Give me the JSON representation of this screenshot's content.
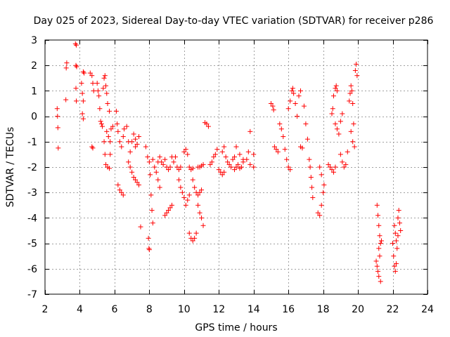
{
  "chart_data": {
    "type": "scatter",
    "title": "Day 025 of 2023, Sidereal Day-to-day VTEC variation (SDTVAR) for receiver p286",
    "xlabel": "GPS time / hours",
    "ylabel": "SDTVAR / TECUs",
    "xlim": [
      2,
      24
    ],
    "ylim": [
      -7,
      3
    ],
    "xticks": [
      2,
      4,
      6,
      8,
      10,
      12,
      14,
      16,
      18,
      20,
      22,
      24
    ],
    "yticks": [
      3,
      2,
      1,
      0,
      -1,
      -2,
      -3,
      -4,
      -5,
      -6,
      -7
    ],
    "grid": true,
    "marker": "plus",
    "color": "#ff0000",
    "series": [
      {
        "name": "SDTVAR",
        "points": [
          [
            2.7,
            0.3
          ],
          [
            2.72,
            0.0
          ],
          [
            2.74,
            -0.45
          ],
          [
            2.76,
            -1.25
          ],
          [
            3.2,
            0.65
          ],
          [
            3.22,
            1.9
          ],
          [
            3.25,
            2.1
          ],
          [
            3.75,
            2.85
          ],
          [
            3.8,
            2.8
          ],
          [
            3.78,
            2.0
          ],
          [
            3.82,
            1.95
          ],
          [
            3.78,
            1.1
          ],
          [
            3.8,
            0.6
          ],
          [
            4.2,
            1.75
          ],
          [
            4.25,
            1.7
          ],
          [
            4.1,
            1.3
          ],
          [
            4.15,
            0.9
          ],
          [
            4.2,
            0.6
          ],
          [
            4.15,
            0.1
          ],
          [
            4.2,
            -0.1
          ],
          [
            4.6,
            1.7
          ],
          [
            4.7,
            1.6
          ],
          [
            4.75,
            1.3
          ],
          [
            4.8,
            1.0
          ],
          [
            4.7,
            -1.2
          ],
          [
            4.75,
            -1.25
          ],
          [
            5.0,
            1.3
          ],
          [
            5.05,
            1.0
          ],
          [
            5.1,
            0.8
          ],
          [
            5.15,
            0.3
          ],
          [
            5.2,
            -0.2
          ],
          [
            5.25,
            -0.3
          ],
          [
            5.3,
            -0.4
          ],
          [
            5.35,
            1.1
          ],
          [
            5.4,
            1.5
          ],
          [
            5.45,
            1.6
          ],
          [
            5.5,
            1.2
          ],
          [
            5.55,
            0.9
          ],
          [
            5.6,
            0.5
          ],
          [
            5.7,
            0.2
          ],
          [
            5.4,
            -1.0
          ],
          [
            5.45,
            -1.5
          ],
          [
            5.5,
            -1.9
          ],
          [
            5.6,
            -2.0
          ],
          [
            5.7,
            -2.05
          ],
          [
            5.75,
            -1.5
          ],
          [
            5.55,
            -0.6
          ],
          [
            5.65,
            -0.8
          ],
          [
            5.75,
            -1.0
          ],
          [
            5.8,
            -0.5
          ],
          [
            5.9,
            -0.4
          ],
          [
            6.1,
            0.2
          ],
          [
            6.15,
            -0.3
          ],
          [
            6.2,
            -0.6
          ],
          [
            6.3,
            -1.0
          ],
          [
            6.4,
            -1.2
          ],
          [
            6.5,
            -0.8
          ],
          [
            6.55,
            -0.5
          ],
          [
            6.2,
            -2.7
          ],
          [
            6.3,
            -2.9
          ],
          [
            6.4,
            -3.0
          ],
          [
            6.5,
            -3.1
          ],
          [
            6.7,
            -0.4
          ],
          [
            6.8,
            -1.0
          ],
          [
            6.9,
            -1.4
          ],
          [
            7.0,
            -1.0
          ],
          [
            7.1,
            -0.7
          ],
          [
            7.2,
            -1.2
          ],
          [
            6.8,
            -1.8
          ],
          [
            6.9,
            -2.0
          ],
          [
            7.0,
            -2.2
          ],
          [
            7.1,
            -2.4
          ],
          [
            7.2,
            -2.5
          ],
          [
            7.3,
            -2.6
          ],
          [
            7.4,
            -2.7
          ],
          [
            7.2,
            -0.9
          ],
          [
            7.3,
            -1.1
          ],
          [
            7.4,
            -0.8
          ],
          [
            7.5,
            -4.35
          ],
          [
            7.8,
            -1.2
          ],
          [
            7.9,
            -1.6
          ],
          [
            8.0,
            -1.8
          ],
          [
            8.05,
            -2.3
          ],
          [
            8.1,
            -3.1
          ],
          [
            8.15,
            -3.7
          ],
          [
            8.2,
            -4.2
          ],
          [
            7.95,
            -4.8
          ],
          [
            7.98,
            -5.2
          ],
          [
            8.0,
            -5.25
          ],
          [
            8.2,
            -1.7
          ],
          [
            8.3,
            -2.0
          ],
          [
            8.4,
            -2.2
          ],
          [
            8.5,
            -2.5
          ],
          [
            8.6,
            -2.8
          ],
          [
            8.5,
            -1.8
          ],
          [
            8.6,
            -1.6
          ],
          [
            8.7,
            -1.8
          ],
          [
            8.8,
            -1.9
          ],
          [
            8.9,
            -1.7
          ],
          [
            9.0,
            -2.0
          ],
          [
            9.1,
            -2.1
          ],
          [
            9.2,
            -2.0
          ],
          [
            8.9,
            -3.9
          ],
          [
            9.0,
            -3.8
          ],
          [
            9.1,
            -3.7
          ],
          [
            9.2,
            -3.6
          ],
          [
            9.3,
            -3.5
          ],
          [
            9.3,
            -1.6
          ],
          [
            9.4,
            -1.8
          ],
          [
            9.5,
            -1.6
          ],
          [
            9.6,
            -2.0
          ],
          [
            9.7,
            -2.1
          ],
          [
            9.8,
            -2.0
          ],
          [
            9.7,
            -2.5
          ],
          [
            9.8,
            -2.8
          ],
          [
            9.9,
            -3.0
          ],
          [
            10.0,
            -3.2
          ],
          [
            10.1,
            -3.5
          ],
          [
            10.2,
            -3.3
          ],
          [
            10.3,
            -3.1
          ],
          [
            10.0,
            -1.4
          ],
          [
            10.1,
            -1.3
          ],
          [
            10.2,
            -1.5
          ],
          [
            10.3,
            -2.0
          ],
          [
            10.4,
            -2.1
          ],
          [
            10.5,
            -2.05
          ],
          [
            10.3,
            -4.6
          ],
          [
            10.4,
            -4.8
          ],
          [
            10.5,
            -4.9
          ],
          [
            10.6,
            -4.8
          ],
          [
            10.7,
            -4.6
          ],
          [
            10.5,
            -2.5
          ],
          [
            10.6,
            -2.8
          ],
          [
            10.7,
            -3.0
          ],
          [
            10.8,
            -3.1
          ],
          [
            10.9,
            -3.0
          ],
          [
            11.0,
            -2.9
          ],
          [
            10.8,
            -3.5
          ],
          [
            10.9,
            -3.8
          ],
          [
            11.0,
            -4.0
          ],
          [
            11.1,
            -4.3
          ],
          [
            10.8,
            -2.0
          ],
          [
            10.9,
            -2.0
          ],
          [
            11.0,
            -1.95
          ],
          [
            11.1,
            -1.9
          ],
          [
            11.2,
            -0.25
          ],
          [
            11.3,
            -0.3
          ],
          [
            11.4,
            -0.4
          ],
          [
            11.5,
            -1.9
          ],
          [
            11.6,
            -1.8
          ],
          [
            11.7,
            -1.6
          ],
          [
            11.8,
            -1.5
          ],
          [
            11.9,
            -1.3
          ],
          [
            12.0,
            -2.1
          ],
          [
            12.1,
            -2.2
          ],
          [
            12.2,
            -2.3
          ],
          [
            12.3,
            -2.2
          ],
          [
            12.2,
            -1.4
          ],
          [
            12.3,
            -1.2
          ],
          [
            12.4,
            -1.6
          ],
          [
            12.5,
            -1.8
          ],
          [
            12.6,
            -1.9
          ],
          [
            12.7,
            -2.0
          ],
          [
            12.8,
            -1.7
          ],
          [
            12.9,
            -1.6
          ],
          [
            12.9,
            -2.1
          ],
          [
            13.0,
            -2.0
          ],
          [
            13.1,
            -1.9
          ],
          [
            13.2,
            -2.05
          ],
          [
            13.3,
            -2.0
          ],
          [
            13.4,
            -1.7
          ],
          [
            13.0,
            -1.2
          ],
          [
            13.2,
            -1.5
          ],
          [
            13.4,
            -1.8
          ],
          [
            13.6,
            -1.7
          ],
          [
            13.7,
            -1.4
          ],
          [
            13.8,
            -0.6
          ],
          [
            13.8,
            -1.9
          ],
          [
            14.0,
            -2.0
          ],
          [
            14.0,
            -1.5
          ],
          [
            15.0,
            0.5
          ],
          [
            15.1,
            0.4
          ],
          [
            15.15,
            0.25
          ],
          [
            15.2,
            -1.2
          ],
          [
            15.3,
            -1.3
          ],
          [
            15.4,
            -1.4
          ],
          [
            15.5,
            -0.3
          ],
          [
            15.6,
            -0.5
          ],
          [
            15.7,
            -0.8
          ],
          [
            15.8,
            -1.3
          ],
          [
            15.9,
            -1.7
          ],
          [
            16.0,
            -2.0
          ],
          [
            16.1,
            -2.1
          ],
          [
            16.0,
            0.3
          ],
          [
            16.1,
            0.6
          ],
          [
            16.2,
            1.0
          ],
          [
            16.25,
            1.1
          ],
          [
            16.3,
            0.9
          ],
          [
            16.4,
            0.5
          ],
          [
            16.5,
            0.0
          ],
          [
            16.6,
            0.8
          ],
          [
            16.7,
            1.0
          ],
          [
            16.7,
            -1.2
          ],
          [
            16.8,
            -1.25
          ],
          [
            16.9,
            0.4
          ],
          [
            17.0,
            -0.3
          ],
          [
            17.1,
            -0.9
          ],
          [
            17.2,
            -1.7
          ],
          [
            17.25,
            -2.0
          ],
          [
            17.3,
            -2.4
          ],
          [
            17.35,
            -2.8
          ],
          [
            17.4,
            -3.2
          ],
          [
            17.7,
            -3.8
          ],
          [
            17.8,
            -3.9
          ],
          [
            17.9,
            -3.5
          ],
          [
            18.0,
            -3.0
          ],
          [
            18.05,
            -2.7
          ],
          [
            17.8,
            -2.0
          ],
          [
            17.9,
            -2.3
          ],
          [
            18.3,
            -1.9
          ],
          [
            18.4,
            -2.0
          ],
          [
            18.5,
            -2.1
          ],
          [
            18.6,
            -2.2
          ],
          [
            18.7,
            -2.0
          ],
          [
            18.5,
            0.1
          ],
          [
            18.55,
            0.3
          ],
          [
            18.6,
            0.8
          ],
          [
            18.7,
            1.1
          ],
          [
            18.75,
            1.2
          ],
          [
            18.8,
            1.0
          ],
          [
            18.7,
            -0.3
          ],
          [
            18.8,
            -0.5
          ],
          [
            18.9,
            -0.7
          ],
          [
            19.0,
            -0.2
          ],
          [
            19.1,
            0.1
          ],
          [
            19.0,
            -1.5
          ],
          [
            19.1,
            -1.8
          ],
          [
            19.2,
            -2.0
          ],
          [
            19.3,
            -1.9
          ],
          [
            19.4,
            -1.4
          ],
          [
            19.5,
            0.6
          ],
          [
            19.55,
            0.9
          ],
          [
            19.6,
            1.2
          ],
          [
            19.65,
            1.0
          ],
          [
            19.7,
            0.5
          ],
          [
            19.75,
            -0.3
          ],
          [
            19.6,
            -0.6
          ],
          [
            19.7,
            -1.0
          ],
          [
            19.8,
            -1.2
          ],
          [
            19.85,
            1.8
          ],
          [
            19.9,
            2.05
          ],
          [
            19.95,
            1.6
          ],
          [
            21.05,
            -5.7
          ],
          [
            21.1,
            -5.9
          ],
          [
            21.15,
            -6.1
          ],
          [
            21.2,
            -6.3
          ],
          [
            21.3,
            -6.5
          ],
          [
            21.1,
            -3.5
          ],
          [
            21.15,
            -3.9
          ],
          [
            21.2,
            -4.3
          ],
          [
            21.25,
            -4.7
          ],
          [
            21.3,
            -5.0
          ],
          [
            21.35,
            -4.9
          ],
          [
            21.2,
            -5.2
          ],
          [
            21.25,
            -5.5
          ],
          [
            22.0,
            -5.0
          ],
          [
            22.05,
            -5.5
          ],
          [
            22.1,
            -5.9
          ],
          [
            22.15,
            -6.1
          ],
          [
            22.2,
            -5.8
          ],
          [
            22.1,
            -4.3
          ],
          [
            22.15,
            -4.6
          ],
          [
            22.2,
            -4.9
          ],
          [
            22.25,
            -5.2
          ],
          [
            22.3,
            -4.7
          ],
          [
            22.3,
            -4.0
          ],
          [
            22.35,
            -3.7
          ],
          [
            22.4,
            -4.2
          ],
          [
            22.45,
            -4.5
          ]
        ]
      }
    ]
  }
}
